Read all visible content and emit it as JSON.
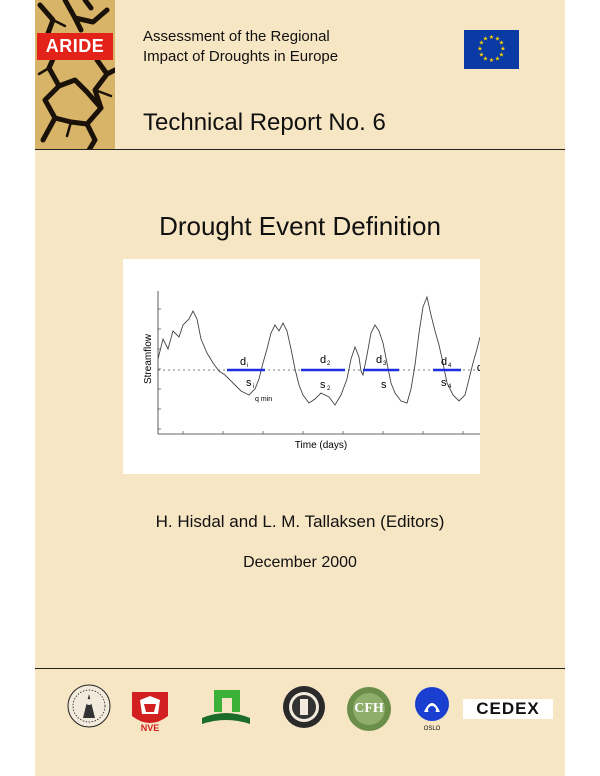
{
  "header": {
    "badge": "ARIDE",
    "subtitle_line1": "Assessment of the Regional",
    "subtitle_line2": "Impact of Droughts in Europe",
    "report_number": "Technical Report No. 6"
  },
  "title": "Drought Event Definition",
  "figure": {
    "ylabel": "Streamflow",
    "xlabel": "Time (days)",
    "labels": {
      "d1": "d",
      "d1_sub": "i",
      "d2": "d",
      "d2_sub": "2",
      "d3": "d",
      "d3_sub": "3",
      "d4": "d",
      "d4_sub": "4",
      "s1": "s",
      "s1_sub": "i",
      "s2": "s",
      "s2_sub": "2",
      "s3": "s",
      "s4": "s",
      "s4_sub": "4",
      "qmin": "q min",
      "q0": "q",
      "q0_sub": "0"
    }
  },
  "authors": "H. Hisdal and L. M. Tallaksen (Editors)",
  "date": "December 2000",
  "partners": {
    "nve_label": "NVE",
    "cfh_label": "CFH",
    "cedex_label": "CEDEX",
    "oslo_label": "OSLO"
  },
  "colors": {
    "page_background": "#f7e6c4",
    "badge_red": "#e32219",
    "eu_blue": "#0a3aa3",
    "eu_star": "#ffd400",
    "deficit_line": "#1f2fe0"
  }
}
